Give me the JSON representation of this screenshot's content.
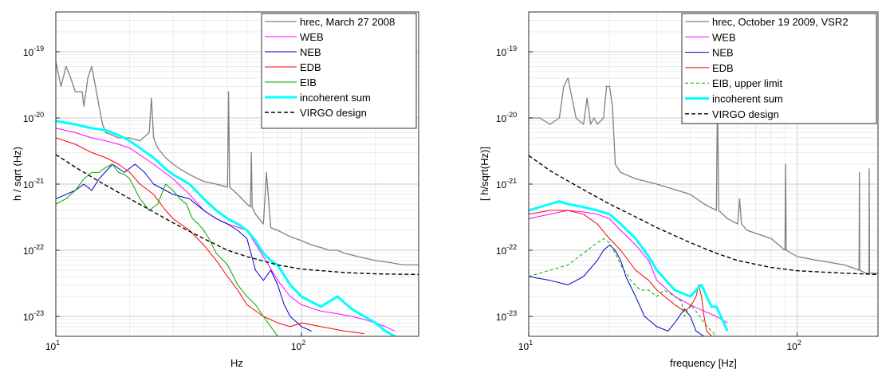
{
  "chart_data": [
    {
      "type": "line",
      "xlabel": "Hz",
      "ylabel": "h / sqrt (Hz)",
      "xscale": "log",
      "yscale": "log",
      "xlim": [
        10,
        300
      ],
      "ylim": [
        5e-24,
        4e-19
      ],
      "grid": true,
      "legend_position": "top-right",
      "x_ticks": [
        {
          "value": 10,
          "base": "10",
          "exp": "1"
        },
        {
          "value": 100,
          "base": "10",
          "exp": "2"
        }
      ],
      "y_ticks": [
        {
          "value": 1e-23,
          "base": "10",
          "exp": "-23"
        },
        {
          "value": 1e-22,
          "base": "10",
          "exp": "-22"
        },
        {
          "value": 1e-21,
          "base": "10",
          "exp": "-21"
        },
        {
          "value": 1e-20,
          "base": "10",
          "exp": "-20"
        },
        {
          "value": 1e-19,
          "base": "10",
          "exp": "-19"
        }
      ],
      "series": [
        {
          "name": "hrec, March 27 2008",
          "color": "#808080",
          "width": 1.3,
          "dash": "",
          "x": [
            10,
            10.5,
            11,
            11.5,
            12,
            12.8,
            13,
            13.5,
            14,
            14.5,
            15,
            15.5,
            16,
            17,
            18,
            20,
            22,
            24,
            24.5,
            25,
            26,
            28,
            30,
            32,
            35,
            38,
            40,
            45,
            50,
            50.5,
            51,
            55,
            60,
            62,
            62.5,
            63,
            65,
            70,
            72,
            75,
            80,
            90,
            100,
            110,
            120,
            130,
            140,
            150,
            170,
            200,
            230,
            260,
            300
          ],
          "y": [
            7e-20,
            3e-20,
            6e-20,
            4e-20,
            2.5e-20,
            2.5e-20,
            1.5e-20,
            4e-20,
            6e-20,
            3e-20,
            1.5e-20,
            8e-21,
            6e-21,
            5.5e-21,
            5e-21,
            5e-21,
            4.5e-21,
            6e-21,
            2e-20,
            5e-21,
            3.5e-21,
            2.5e-21,
            2e-21,
            1.7e-21,
            1.4e-21,
            1.2e-21,
            1.1e-21,
            1e-21,
            9e-22,
            2.5e-20,
            9e-22,
            7e-22,
            5e-22,
            4.5e-22,
            3e-21,
            4.5e-22,
            3.5e-22,
            2.5e-22,
            1.5e-21,
            2.2e-22,
            2e-22,
            1.6e-22,
            1.4e-22,
            1.2e-22,
            1.1e-22,
            1e-22,
            1e-22,
            9e-23,
            8e-23,
            7e-23,
            6.5e-23,
            6e-23,
            6e-23
          ]
        },
        {
          "name": "WEB",
          "color": "#ff00ff",
          "width": 1.0,
          "dash": "",
          "x": [
            10,
            12,
            14,
            16,
            18,
            20,
            25,
            30,
            35,
            40,
            45,
            50,
            60,
            70,
            80,
            90,
            100,
            120,
            140,
            160,
            180,
            200,
            220,
            240
          ],
          "y": [
            7e-21,
            6e-21,
            5e-21,
            4.5e-21,
            4e-21,
            3.5e-21,
            2e-21,
            1.2e-21,
            7e-22,
            4e-22,
            3e-22,
            2.5e-22,
            2e-22,
            8e-23,
            3.5e-23,
            2e-23,
            1.5e-23,
            1.2e-23,
            1.1e-23,
            1e-23,
            9e-24,
            8e-24,
            7e-24,
            6e-24
          ]
        },
        {
          "name": "NEB",
          "color": "#0000cc",
          "width": 1.0,
          "dash": "",
          "x": [
            10,
            11,
            12,
            13,
            14,
            15,
            17,
            19,
            21,
            23,
            25,
            28,
            30,
            35,
            40,
            45,
            50,
            55,
            60,
            65,
            70,
            75,
            80,
            85,
            90,
            100,
            110
          ],
          "y": [
            6e-22,
            7e-22,
            8e-22,
            1e-21,
            8e-22,
            1.2e-21,
            2e-21,
            1.5e-21,
            2e-21,
            1.5e-21,
            1e-21,
            8e-22,
            7e-22,
            6e-22,
            4e-22,
            3e-22,
            2.5e-22,
            2e-22,
            1.5e-22,
            5e-23,
            3.5e-23,
            5e-23,
            3e-23,
            1.5e-23,
            1e-23,
            7e-24,
            6e-24
          ]
        },
        {
          "name": "EDB",
          "color": "#ff0000",
          "width": 1.0,
          "dash": "",
          "x": [
            10,
            12,
            14,
            16,
            18,
            20,
            22,
            25,
            28,
            30,
            35,
            40,
            45,
            50,
            55,
            60,
            70,
            80,
            90,
            100,
            120,
            150,
            180
          ],
          "y": [
            5e-21,
            4e-21,
            3e-21,
            2.5e-21,
            2e-21,
            1.5e-21,
            1e-21,
            7e-22,
            4e-22,
            3e-22,
            2e-22,
            1.2e-22,
            7e-23,
            4e-23,
            2.5e-23,
            1.5e-23,
            1e-23,
            8e-24,
            7e-24,
            8e-24,
            7e-24,
            6e-24,
            5.5e-24
          ]
        },
        {
          "name": "EIB",
          "color": "#00aa00",
          "width": 1.0,
          "dash": "",
          "x": [
            10,
            11,
            12,
            13,
            14,
            15,
            16,
            17,
            18,
            19,
            20,
            22,
            24,
            26,
            28,
            30,
            32,
            34,
            36,
            38,
            40,
            42,
            45,
            50,
            55,
            60,
            65,
            70,
            75,
            80
          ],
          "y": [
            5e-22,
            6e-22,
            8e-22,
            1.2e-21,
            1.5e-21,
            1.5e-21,
            1.8e-21,
            2e-21,
            1.5e-21,
            1.4e-21,
            1.2e-21,
            6e-22,
            4e-22,
            5e-22,
            1e-21,
            8e-22,
            6e-22,
            5e-22,
            3e-22,
            2.5e-22,
            2e-22,
            1.5e-22,
            9e-23,
            6e-23,
            3e-23,
            2e-23,
            1.5e-23,
            1e-23,
            7e-24,
            5e-24
          ]
        },
        {
          "name": "incoherent sum",
          "color": "#00ffff",
          "width": 3.0,
          "dash": "",
          "x": [
            10,
            12,
            14,
            16,
            18,
            20,
            22,
            25,
            28,
            30,
            35,
            40,
            45,
            50,
            55,
            60,
            65,
            70,
            75,
            80,
            90,
            100,
            120,
            140,
            160,
            180,
            200,
            220,
            240
          ],
          "y": [
            9e-21,
            8e-21,
            7e-21,
            6.5e-21,
            5.5e-21,
            4.5e-21,
            3.5e-21,
            2.5e-21,
            1.7e-21,
            1.4e-21,
            1e-21,
            6e-22,
            4e-22,
            3e-22,
            2.5e-22,
            2e-22,
            1.4e-22,
            9e-23,
            7e-23,
            6e-23,
            3e-23,
            2e-23,
            1.4e-23,
            2e-23,
            1.3e-23,
            1e-23,
            8e-24,
            6e-24,
            5e-24
          ]
        },
        {
          "name": "VIRGO design",
          "color": "#000000",
          "width": 1.4,
          "dash": "5,3",
          "x": [
            10,
            12,
            15,
            20,
            25,
            30,
            40,
            50,
            60,
            80,
            100,
            150,
            200,
            300
          ],
          "y": [
            2.8e-21,
            1.8e-21,
            1.1e-21,
            6e-22,
            3.8e-22,
            2.6e-22,
            1.5e-22,
            1e-22,
            8e-23,
            6e-23,
            5.2e-23,
            4.6e-23,
            4.4e-23,
            4.3e-23
          ]
        }
      ]
    },
    {
      "type": "line",
      "xlabel": "frequency [Hz]",
      "ylabel": "[ h/sqrt(Hz)]",
      "xscale": "log",
      "yscale": "log",
      "xlim": [
        10,
        200
      ],
      "ylim": [
        5e-24,
        4e-19
      ],
      "grid": true,
      "legend_position": "top-right",
      "x_ticks": [
        {
          "value": 10,
          "base": "10",
          "exp": "1"
        },
        {
          "value": 100,
          "base": "10",
          "exp": "2"
        }
      ],
      "y_ticks": [
        {
          "value": 1e-23,
          "base": "10",
          "exp": "-23"
        },
        {
          "value": 1e-22,
          "base": "10",
          "exp": "-22"
        },
        {
          "value": 1e-21,
          "base": "10",
          "exp": "-21"
        },
        {
          "value": 1e-20,
          "base": "10",
          "exp": "-20"
        },
        {
          "value": 1e-19,
          "base": "10",
          "exp": "-19"
        }
      ],
      "series": [
        {
          "name": "hrec, October 19 2009, VSR2",
          "color": "#808080",
          "width": 1.3,
          "dash": "",
          "x": [
            10,
            11,
            12,
            13,
            13.5,
            14,
            14.5,
            15,
            16,
            16.5,
            17,
            17.5,
            18,
            19,
            19.5,
            20,
            20.5,
            21,
            22,
            25,
            30,
            40,
            45,
            50,
            50.5,
            51,
            55,
            60,
            61,
            62,
            65,
            80,
            90,
            90.5,
            91,
            100,
            120,
            150,
            170,
            170.5,
            171,
            180,
            185,
            185.5,
            186,
            190,
            200
          ],
          "y": [
            1e-20,
            1e-20,
            8e-21,
            1e-20,
            3e-20,
            4e-20,
            2e-20,
            1e-20,
            8e-21,
            2e-20,
            8e-21,
            1e-20,
            8e-21,
            1e-20,
            3e-20,
            3e-20,
            1.5e-20,
            2e-21,
            1.5e-21,
            1.2e-21,
            1e-21,
            7e-22,
            5e-22,
            4e-22,
            2e-20,
            4e-22,
            3e-22,
            2.5e-22,
            6e-22,
            2.5e-22,
            2e-22,
            1.5e-22,
            1e-22,
            2e-21,
            1e-22,
            8e-23,
            7e-23,
            6e-23,
            5e-23,
            1.5e-21,
            5e-23,
            4.5e-23,
            4.5e-23,
            1.7e-21,
            4.5e-23,
            4.5e-23,
            4.5e-23
          ]
        },
        {
          "name": "WEB",
          "color": "#ff00ff",
          "width": 1.0,
          "dash": "",
          "x": [
            10,
            12,
            14,
            16,
            18,
            20,
            22,
            25,
            28,
            30,
            35,
            40,
            45,
            50,
            55
          ],
          "y": [
            3e-22,
            3.5e-22,
            4e-22,
            3.8e-22,
            3.5e-22,
            3e-22,
            2e-22,
            1.2e-22,
            7e-23,
            3.5e-23,
            2e-23,
            1.5e-23,
            1.2e-23,
            1e-23,
            8e-24
          ]
        },
        {
          "name": "NEB",
          "color": "#0000cc",
          "width": 1.0,
          "dash": "",
          "x": [
            10,
            12,
            14,
            16,
            18,
            19,
            20,
            21,
            22,
            23,
            25,
            27,
            30,
            33,
            35,
            38,
            40,
            42,
            45
          ],
          "y": [
            4e-23,
            3.5e-23,
            3e-23,
            4e-23,
            7e-23,
            1e-22,
            1.2e-22,
            1e-22,
            7e-23,
            4e-23,
            2e-23,
            1e-23,
            7e-24,
            6e-24,
            8e-24,
            1.3e-23,
            1e-23,
            6e-24,
            5e-24
          ]
        },
        {
          "name": "EDB",
          "color": "#ff0000",
          "width": 1.0,
          "dash": "",
          "x": [
            10,
            12,
            14,
            16,
            18,
            20,
            22,
            25,
            28,
            30,
            35,
            38,
            40,
            42,
            43,
            44,
            45,
            46,
            48,
            50
          ],
          "y": [
            3.5e-22,
            4e-22,
            4e-22,
            3.5e-22,
            2.5e-22,
            1.5e-22,
            1e-22,
            5e-23,
            3.5e-23,
            2.5e-23,
            1.5e-23,
            1.2e-23,
            1.4e-23,
            2e-23,
            3e-23,
            2e-23,
            1e-23,
            6e-24,
            5e-24,
            5e-24
          ]
        },
        {
          "name": "EIB, upper limit",
          "color": "#00aa00",
          "width": 1.0,
          "dash": "4,3",
          "x": [
            10,
            12,
            14,
            16,
            18,
            19,
            20,
            21,
            22,
            24,
            26,
            28,
            30,
            32,
            35,
            37,
            38,
            40,
            42,
            45,
            48,
            50
          ],
          "y": [
            4e-23,
            5e-23,
            6e-23,
            9e-23,
            1.3e-22,
            1.5e-22,
            1.3e-22,
            9e-23,
            6e-23,
            3.5e-23,
            2.5e-23,
            2.5e-23,
            2e-23,
            2.5e-23,
            2e-23,
            1.7e-23,
            1e-23,
            1.5e-23,
            1.2e-23,
            8e-24,
            6e-24,
            5e-24
          ]
        },
        {
          "name": "incoherent sum",
          "color": "#00ffff",
          "width": 3.0,
          "dash": "",
          "x": [
            10,
            12,
            13,
            14,
            16,
            18,
            20,
            22,
            25,
            28,
            30,
            35,
            40,
            42,
            44,
            46,
            48,
            50,
            52,
            55
          ],
          "y": [
            4e-22,
            5e-22,
            5.5e-22,
            5e-22,
            4.5e-22,
            4e-22,
            3.5e-22,
            2.5e-22,
            1.5e-22,
            8e-23,
            5e-23,
            2.5e-23,
            2e-23,
            2.5e-23,
            3e-23,
            2e-23,
            1.4e-23,
            1.4e-23,
            1e-23,
            6e-24
          ]
        },
        {
          "name": "VIRGO design",
          "color": "#000000",
          "width": 1.4,
          "dash": "5,3",
          "x": [
            10,
            12,
            15,
            20,
            25,
            30,
            40,
            50,
            60,
            80,
            100,
            150,
            200
          ],
          "y": [
            2.7e-21,
            1.6e-21,
            9.5e-22,
            5e-22,
            3.2e-22,
            2.2e-22,
            1.3e-22,
            9e-23,
            7e-23,
            5.5e-23,
            4.9e-23,
            4.5e-23,
            4.3e-23
          ]
        }
      ]
    }
  ]
}
